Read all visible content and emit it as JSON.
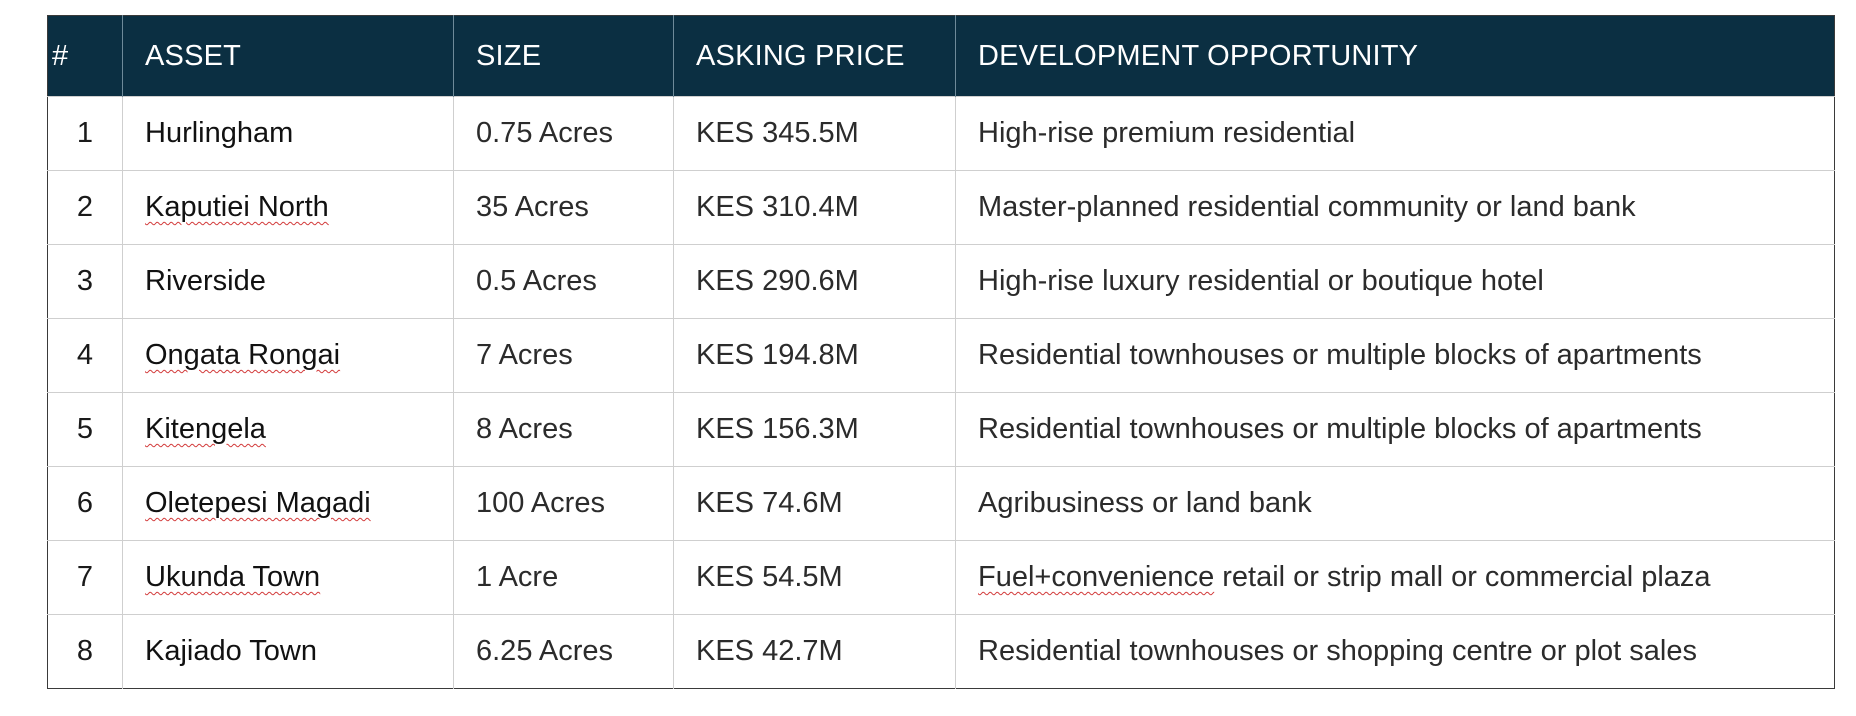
{
  "table": {
    "headers": {
      "num": "#",
      "asset": "ASSET",
      "size": "SIZE",
      "price": "ASKING PRICE",
      "dev": "DEVELOPMENT OPPORTUNITY"
    },
    "rows": [
      {
        "num": "1",
        "asset": "Hurlingham",
        "size": "0.75 Acres",
        "price": "KES 345.5M",
        "dev": "High-rise premium residential"
      },
      {
        "num": "2",
        "asset": "Kaputiei North",
        "size": "35 Acres",
        "price": "KES 310.4M",
        "dev": "Master-planned residential community or land bank"
      },
      {
        "num": "3",
        "asset": "Riverside",
        "size": "0.5 Acres",
        "price": "KES 290.6M",
        "dev": "High-rise luxury residential or boutique hotel"
      },
      {
        "num": "4",
        "asset": "Ongata Rongai",
        "size": "7 Acres",
        "price": "KES 194.8M",
        "dev": "Residential townhouses or multiple blocks of apartments"
      },
      {
        "num": "5",
        "asset": "Kitengela",
        "size": "8 Acres",
        "price": "KES 156.3M",
        "dev": "Residential townhouses or multiple blocks of apartments"
      },
      {
        "num": "6",
        "asset": "Oletepesi Magadi",
        "size": "100 Acres",
        "price": "KES 74.6M",
        "dev": "Agribusiness or land bank"
      },
      {
        "num": "7",
        "asset": "Ukunda Town",
        "size": "1 Acre",
        "price": "KES 54.5M",
        "dev_prefix": "Fuel+convenience",
        "dev_rest": " retail or strip mall or commercial plaza"
      },
      {
        "num": "8",
        "asset": "Kajiado Town",
        "size": "6.25 Acres",
        "price": "KES 42.7M",
        "dev": "Residential townhouses or shopping centre or plot sales"
      }
    ]
  },
  "colors": {
    "header_bg": "#0b2f42",
    "header_text": "#ffffff",
    "grid_line": "#cfcfcf",
    "spellcheck_underline": "#d23a3a"
  }
}
